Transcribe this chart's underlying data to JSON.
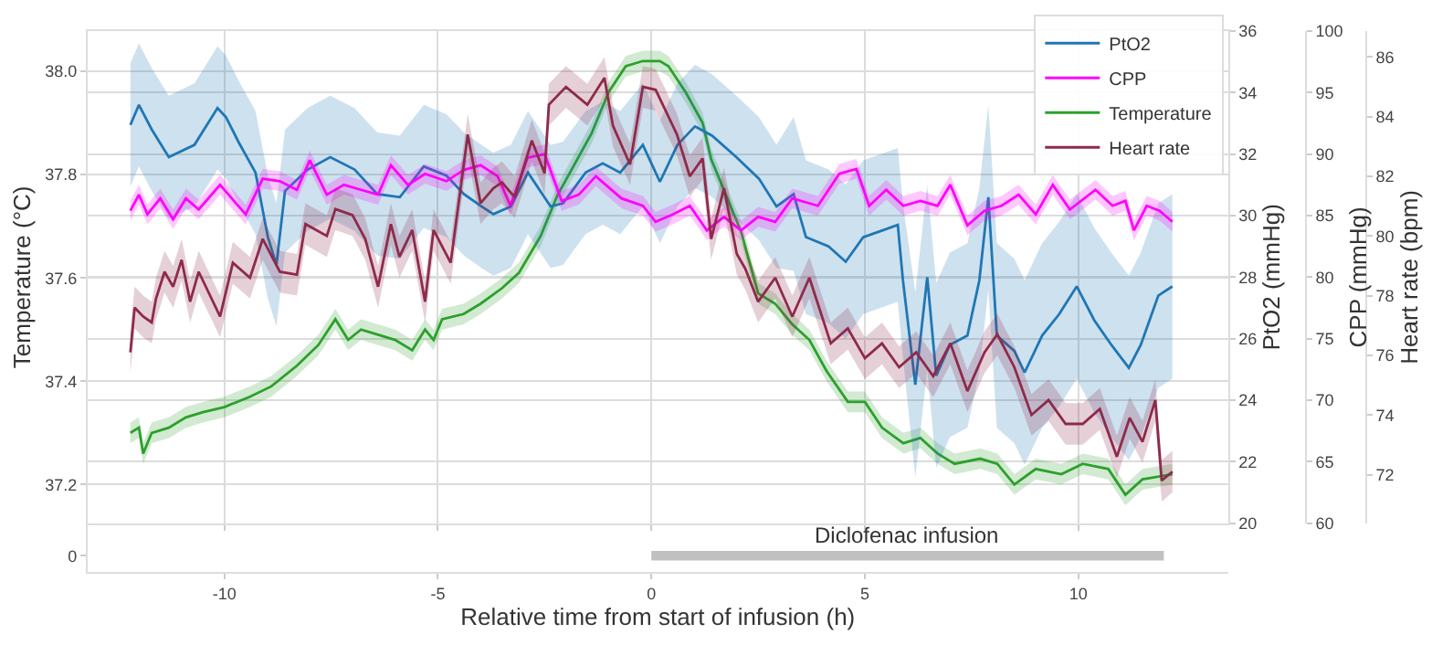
{
  "chart_data": [
    {
      "type": "line",
      "xlim": [
        -13.2,
        13.5
      ],
      "xticks": [
        -10,
        -5,
        0,
        5,
        10
      ],
      "tick_labels": "y",
      "grid": true,
      "legend": "top right",
      "ylabel": "Temperature (°C)",
      "y2label": "PtO2 (mmHg)",
      "y3label": "CPP (mmHg)",
      "ylim": [
        37.125,
        38.078
      ],
      "yticks": [
        37.2,
        37.4,
        37.6,
        37.8,
        {
          "value": 38.0,
          "label": "38.0"
        }
      ],
      "y2lim": [
        20,
        36
      ],
      "y2ticks": [
        20,
        22,
        24,
        26,
        28,
        30,
        32,
        34,
        36
      ],
      "y3lim": [
        60,
        100
      ],
      "y3ticks": [
        60,
        65,
        70,
        75,
        80,
        85,
        90,
        95,
        100
      ],
      "series": [
        {
          "name": "PtO2",
          "color": "#1f77b4",
          "axis": "y2",
          "x": [
            -12.2,
            -12.0,
            -11.7,
            -11.3,
            -10.7,
            -10.16,
            -9.96,
            -9.67,
            -9.27,
            -8.98,
            -8.78,
            -8.58,
            -8.05,
            -7.52,
            -6.95,
            -6.42,
            -5.89,
            -5.33,
            -4.8,
            -4.39,
            -3.98,
            -3.7,
            -3.29,
            -2.89,
            -2.36,
            -2.07,
            -1.54,
            -1.14,
            -0.73,
            -0.2,
            0.2,
            0.61,
            1.02,
            1.42,
            1.99,
            2.52,
            2.93,
            3.33,
            3.62,
            4.15,
            4.55,
            4.96,
            5.37,
            5.77,
            5.89,
            6.18,
            6.46,
            6.67,
            6.99,
            7.4,
            7.68,
            7.89,
            8.09,
            8.5,
            8.74,
            9.15,
            9.55,
            9.96,
            10.37,
            10.77,
            11.18,
            11.46,
            11.87,
            12.2
          ],
          "values": [
            32.95,
            33.6,
            32.8,
            31.9,
            32.3,
            33.5,
            33.2,
            32.4,
            31.4,
            29.3,
            28.4,
            30.8,
            31.5,
            31.9,
            31.5,
            30.7,
            30.6,
            31.6,
            31.3,
            30.7,
            30.3,
            30.05,
            30.3,
            31.4,
            30.3,
            30.4,
            31.4,
            31.7,
            31.4,
            32.3,
            31.1,
            32.3,
            32.9,
            32.6,
            31.9,
            31.2,
            30.3,
            30.7,
            29.3,
            29.0,
            28.5,
            29.3,
            29.5,
            29.7,
            27.9,
            24.5,
            28.0,
            24.8,
            25.8,
            26.1,
            27.9,
            30.6,
            26.1,
            25.6,
            24.9,
            26.1,
            26.8,
            27.7,
            26.6,
            25.8,
            25.05,
            25.8,
            27.4,
            27.7
          ],
          "lower": [
            30.95,
            31.6,
            30.8,
            29.9,
            30.3,
            31.5,
            31.2,
            30.4,
            29.4,
            27.3,
            26.4,
            28.8,
            29.5,
            29.9,
            29.5,
            28.7,
            28.6,
            29.6,
            29.3,
            28.7,
            28.3,
            28.05,
            28.3,
            29.4,
            28.3,
            28.4,
            29.4,
            29.7,
            29.4,
            30.3,
            29.1,
            30.3,
            30.9,
            30.6,
            29.9,
            29.2,
            28.3,
            28.2,
            26.8,
            26.5,
            26.0,
            26.8,
            27.0,
            27.2,
            25.4,
            21.5,
            25.0,
            21.8,
            22.8,
            23.1,
            24.9,
            27.6,
            23.1,
            22.6,
            21.9,
            23.1,
            23.8,
            24.7,
            23.6,
            22.8,
            22.05,
            22.8,
            24.4,
            24.7
          ],
          "upper": [
            34.95,
            35.6,
            34.8,
            33.9,
            34.3,
            35.5,
            35.2,
            34.4,
            33.4,
            31.3,
            30.4,
            32.8,
            33.5,
            33.9,
            33.5,
            32.7,
            32.6,
            33.6,
            33.3,
            32.7,
            32.3,
            32.05,
            32.3,
            33.4,
            32.3,
            32.4,
            33.4,
            33.7,
            33.4,
            34.3,
            33.1,
            34.3,
            34.9,
            34.6,
            33.9,
            33.2,
            32.3,
            33.2,
            31.8,
            31.5,
            31.0,
            31.8,
            32.0,
            32.2,
            30.4,
            27.5,
            31.0,
            27.8,
            28.8,
            29.1,
            30.9,
            33.6,
            29.1,
            28.6,
            27.9,
            29.1,
            29.8,
            30.7,
            29.6,
            28.8,
            28.05,
            28.8,
            30.4,
            30.7
          ]
        },
        {
          "name": "CPP",
          "color": "#ff00ff",
          "axis": "y3",
          "x": [
            -12.2,
            -12.0,
            -11.8,
            -11.5,
            -11.2,
            -10.9,
            -10.6,
            -10.1,
            -9.5,
            -9.1,
            -8.7,
            -8.3,
            -8.0,
            -7.6,
            -7.2,
            -6.8,
            -6.4,
            -6.1,
            -5.7,
            -5.3,
            -4.8,
            -4.4,
            -4.0,
            -3.6,
            -3.3,
            -2.9,
            -2.5,
            -2.1,
            -1.7,
            -1.3,
            -0.7,
            -0.2,
            0.1,
            0.5,
            0.9,
            1.3,
            1.7,
            2.1,
            2.5,
            2.9,
            3.3,
            3.9,
            4.4,
            4.8,
            5.1,
            5.5,
            5.9,
            6.3,
            6.7,
            7.0,
            7.4,
            7.8,
            8.2,
            8.6,
            9.0,
            9.4,
            9.8,
            10.4,
            10.8,
            11.1,
            11.3,
            11.6,
            11.9,
            12.2
          ],
          "values": [
            85.4,
            86.7,
            85.1,
            86.4,
            84.7,
            86.4,
            85.5,
            87.5,
            85.1,
            88.0,
            87.8,
            87.1,
            89.5,
            86.7,
            87.5,
            87.1,
            86.7,
            89.1,
            87.5,
            88.4,
            87.8,
            88.7,
            89.1,
            88.2,
            85.8,
            89.7,
            90.0,
            86.2,
            86.7,
            88.2,
            86.4,
            85.8,
            84.5,
            85.1,
            85.8,
            83.8,
            84.9,
            83.8,
            84.9,
            84.5,
            86.4,
            85.8,
            88.4,
            88.8,
            85.8,
            87.1,
            85.8,
            86.2,
            85.8,
            87.5,
            84.2,
            85.4,
            85.8,
            86.7,
            85.1,
            87.5,
            85.5,
            87.1,
            85.8,
            86.2,
            83.8,
            85.8,
            85.4,
            84.5
          ],
          "lower": [
            84.6,
            85.9,
            84.3,
            85.6,
            83.9,
            85.6,
            84.7,
            86.7,
            84.3,
            87.2,
            87.0,
            86.3,
            88.7,
            85.9,
            86.7,
            86.3,
            85.9,
            88.3,
            86.7,
            87.6,
            87.0,
            87.9,
            88.3,
            87.4,
            85.0,
            88.9,
            89.2,
            85.4,
            85.9,
            87.4,
            85.6,
            85.0,
            83.7,
            84.3,
            85.0,
            83.0,
            84.1,
            83.0,
            84.1,
            83.7,
            85.6,
            85.0,
            87.6,
            88.0,
            85.0,
            86.3,
            85.0,
            85.4,
            85.0,
            86.7,
            83.4,
            84.6,
            85.0,
            85.9,
            84.3,
            86.7,
            84.7,
            86.3,
            85.0,
            85.4,
            83.0,
            85.0,
            84.6,
            83.7
          ],
          "upper": [
            86.2,
            87.5,
            85.9,
            87.2,
            85.5,
            87.2,
            86.3,
            88.3,
            85.9,
            88.8,
            88.6,
            87.9,
            90.3,
            87.5,
            88.3,
            87.9,
            87.5,
            89.9,
            88.3,
            89.2,
            88.6,
            89.5,
            89.9,
            89.0,
            86.6,
            90.5,
            90.8,
            87.0,
            87.5,
            89.0,
            87.2,
            86.6,
            85.3,
            85.9,
            86.6,
            84.6,
            85.7,
            84.6,
            85.7,
            85.3,
            87.2,
            86.6,
            89.2,
            89.6,
            86.6,
            87.9,
            86.6,
            87.0,
            86.6,
            88.3,
            85.0,
            86.2,
            86.6,
            87.5,
            85.9,
            88.3,
            86.3,
            87.9,
            86.6,
            87.0,
            84.6,
            86.6,
            86.2,
            85.3
          ]
        },
        {
          "name": "Temperature",
          "color": "#2ca02c",
          "axis": "y",
          "x": [
            -12.2,
            -12.0,
            -11.9,
            -11.7,
            -11.3,
            -10.9,
            -10.5,
            -10.0,
            -9.4,
            -8.9,
            -8.3,
            -7.8,
            -7.4,
            -7.1,
            -6.8,
            -6.4,
            -6.0,
            -5.6,
            -5.3,
            -5.1,
            -4.9,
            -4.4,
            -4.0,
            -3.5,
            -3.1,
            -2.6,
            -2.2,
            -1.8,
            -1.4,
            -1.0,
            -0.6,
            -0.2,
            0.2,
            0.4,
            0.8,
            1.2,
            1.4,
            1.7,
            2.1,
            2.5,
            2.9,
            3.3,
            3.7,
            4.1,
            4.6,
            5.0,
            5.4,
            5.9,
            6.3,
            6.7,
            7.1,
            7.7,
            8.1,
            8.5,
            9.0,
            9.6,
            10.1,
            10.7,
            11.1,
            11.5,
            12.2
          ],
          "values": [
            37.3,
            37.31,
            37.26,
            37.3,
            37.31,
            37.33,
            37.34,
            37.35,
            37.37,
            37.39,
            37.43,
            37.47,
            37.52,
            37.48,
            37.5,
            37.49,
            37.48,
            37.46,
            37.5,
            37.48,
            37.52,
            37.53,
            37.55,
            37.58,
            37.61,
            37.68,
            37.76,
            37.82,
            37.88,
            37.96,
            38.01,
            38.02,
            38.02,
            38.01,
            37.96,
            37.9,
            37.83,
            37.77,
            37.69,
            37.57,
            37.55,
            37.51,
            37.48,
            37.42,
            37.36,
            37.36,
            37.31,
            37.28,
            37.29,
            37.26,
            37.24,
            37.25,
            37.24,
            37.2,
            37.23,
            37.22,
            37.24,
            37.23,
            37.18,
            37.21,
            37.22
          ],
          "lower": [
            37.28,
            37.29,
            37.24,
            37.28,
            37.29,
            37.31,
            37.32,
            37.33,
            37.35,
            37.37,
            37.41,
            37.45,
            37.5,
            37.46,
            37.48,
            37.47,
            37.46,
            37.44,
            37.48,
            37.46,
            37.5,
            37.51,
            37.53,
            37.56,
            37.59,
            37.66,
            37.74,
            37.8,
            37.86,
            37.94,
            37.99,
            38.0,
            38.0,
            37.99,
            37.94,
            37.88,
            37.81,
            37.75,
            37.67,
            37.55,
            37.53,
            37.49,
            37.46,
            37.4,
            37.34,
            37.34,
            37.29,
            37.26,
            37.27,
            37.24,
            37.22,
            37.23,
            37.22,
            37.18,
            37.21,
            37.2,
            37.22,
            37.21,
            37.16,
            37.19,
            37.2
          ],
          "upper": [
            37.32,
            37.33,
            37.28,
            37.32,
            37.33,
            37.35,
            37.36,
            37.37,
            37.39,
            37.41,
            37.45,
            37.49,
            37.54,
            37.5,
            37.52,
            37.51,
            37.5,
            37.48,
            37.52,
            37.5,
            37.54,
            37.55,
            37.57,
            37.6,
            37.63,
            37.7,
            37.78,
            37.84,
            37.9,
            37.98,
            38.03,
            38.04,
            38.04,
            38.03,
            37.98,
            37.92,
            37.85,
            37.79,
            37.71,
            37.59,
            37.57,
            37.53,
            37.5,
            37.44,
            37.38,
            37.38,
            37.33,
            37.3,
            37.31,
            37.28,
            37.26,
            37.27,
            37.26,
            37.22,
            37.25,
            37.24,
            37.26,
            37.25,
            37.2,
            37.23,
            37.24
          ]
        }
      ]
    },
    {
      "type": "line",
      "xlim": [
        -13.2,
        13.5
      ],
      "tick_labels": "y",
      "ylabel": "Heart rate (bpm)",
      "ylim": [
        70.37,
        86.87
      ],
      "yticks": [
        72,
        74,
        76,
        78,
        80,
        82,
        84,
        86
      ],
      "series": [
        {
          "name": "Heart rate",
          "color": "#8e2a4b",
          "x": [
            -12.2,
            -12.1,
            -11.9,
            -11.7,
            -11.6,
            -11.4,
            -11.2,
            -11.0,
            -10.8,
            -10.6,
            -10.1,
            -9.8,
            -9.4,
            -9.1,
            -8.7,
            -8.3,
            -8.1,
            -7.6,
            -7.4,
            -7.0,
            -6.7,
            -6.4,
            -6.1,
            -5.9,
            -5.6,
            -5.3,
            -5.1,
            -4.7,
            -4.3,
            -4.0,
            -3.7,
            -3.5,
            -3.2,
            -2.8,
            -2.5,
            -2.4,
            -2.0,
            -1.5,
            -1.1,
            -0.9,
            -0.5,
            -0.2,
            0.1,
            0.3,
            0.5,
            0.6,
            0.9,
            1.2,
            1.4,
            1.7,
            2.0,
            2.2,
            2.5,
            2.9,
            3.3,
            3.7,
            4.2,
            4.6,
            5.0,
            5.4,
            5.8,
            6.2,
            6.6,
            7.0,
            7.4,
            7.8,
            8.1,
            8.5,
            8.9,
            9.3,
            9.7,
            10.1,
            10.5,
            10.9,
            11.2,
            11.5,
            11.8,
            11.95,
            12.2
          ],
          "values": [
            76.1,
            77.6,
            77.3,
            77.1,
            77.9,
            78.8,
            78.3,
            79.2,
            77.8,
            78.8,
            77.3,
            79.1,
            78.6,
            79.9,
            78.8,
            78.7,
            80.4,
            80.0,
            80.9,
            80.7,
            79.9,
            78.3,
            80.4,
            79.3,
            80.2,
            77.8,
            80.2,
            79.1,
            83.4,
            81.1,
            81.6,
            81.8,
            81.3,
            83.2,
            82.1,
            84.4,
            85.0,
            84.4,
            85.3,
            83.7,
            82.4,
            85.0,
            84.9,
            84.3,
            83.7,
            83.4,
            82.0,
            82.6,
            79.9,
            81.6,
            79.4,
            78.9,
            77.8,
            78.6,
            77.3,
            78.6,
            76.4,
            76.9,
            75.9,
            76.4,
            75.6,
            76.1,
            75.3,
            76.4,
            74.8,
            76.1,
            76.7,
            75.6,
            74.0,
            74.5,
            73.7,
            73.7,
            74.2,
            72.6,
            73.9,
            73.1,
            74.5,
            71.8,
            72.1
          ],
          "lower": [
            75.4,
            76.9,
            76.6,
            76.4,
            77.2,
            78.1,
            77.6,
            78.5,
            77.1,
            78.1,
            76.6,
            78.4,
            77.9,
            79.2,
            78.1,
            78.0,
            79.7,
            79.3,
            80.2,
            80.0,
            79.2,
            77.6,
            79.7,
            78.6,
            79.5,
            77.1,
            79.5,
            78.4,
            82.7,
            80.4,
            80.9,
            81.1,
            80.6,
            82.5,
            81.4,
            83.7,
            84.3,
            83.7,
            84.6,
            83.0,
            81.7,
            84.3,
            84.2,
            83.6,
            83.0,
            82.7,
            81.3,
            81.9,
            79.2,
            80.9,
            78.7,
            78.2,
            77.1,
            77.9,
            76.6,
            77.9,
            75.7,
            76.2,
            75.2,
            75.7,
            74.9,
            75.4,
            74.6,
            75.7,
            74.1,
            75.4,
            76.0,
            74.9,
            73.3,
            73.8,
            73.0,
            73.0,
            73.5,
            71.9,
            73.2,
            72.4,
            73.8,
            71.1,
            71.4
          ],
          "upper": [
            76.8,
            78.3,
            78.0,
            77.8,
            78.6,
            79.5,
            79.0,
            79.9,
            78.5,
            79.5,
            78.0,
            79.8,
            79.3,
            80.6,
            79.5,
            79.4,
            81.1,
            80.7,
            81.6,
            81.4,
            80.6,
            79.0,
            81.1,
            80.0,
            80.9,
            78.5,
            80.9,
            79.8,
            84.1,
            81.8,
            82.3,
            82.5,
            82.0,
            83.9,
            82.8,
            85.1,
            85.7,
            85.1,
            86.0,
            84.4,
            83.1,
            85.7,
            85.6,
            85.0,
            84.4,
            84.1,
            82.7,
            83.3,
            80.6,
            82.3,
            80.1,
            79.6,
            78.5,
            79.3,
            78.0,
            79.3,
            77.1,
            77.6,
            76.6,
            77.1,
            76.3,
            76.8,
            76.0,
            77.1,
            75.5,
            76.8,
            77.4,
            76.3,
            74.7,
            75.2,
            74.4,
            74.4,
            74.9,
            73.3,
            74.6,
            73.8,
            75.2,
            72.5,
            72.8
          ]
        }
      ]
    },
    {
      "type": "bar",
      "orientation": "horizontal",
      "categories": [
        "0"
      ],
      "base": [
        0
      ],
      "values": [
        12
      ],
      "color": "#c0c0c0",
      "xlim": [
        -13.2,
        13.5
      ],
      "xticks": [
        -10,
        -5,
        0,
        5,
        10
      ],
      "xlabel": "Relative time from start of infusion (h)",
      "annotations": [
        "Diclofenac infusion"
      ]
    }
  ]
}
